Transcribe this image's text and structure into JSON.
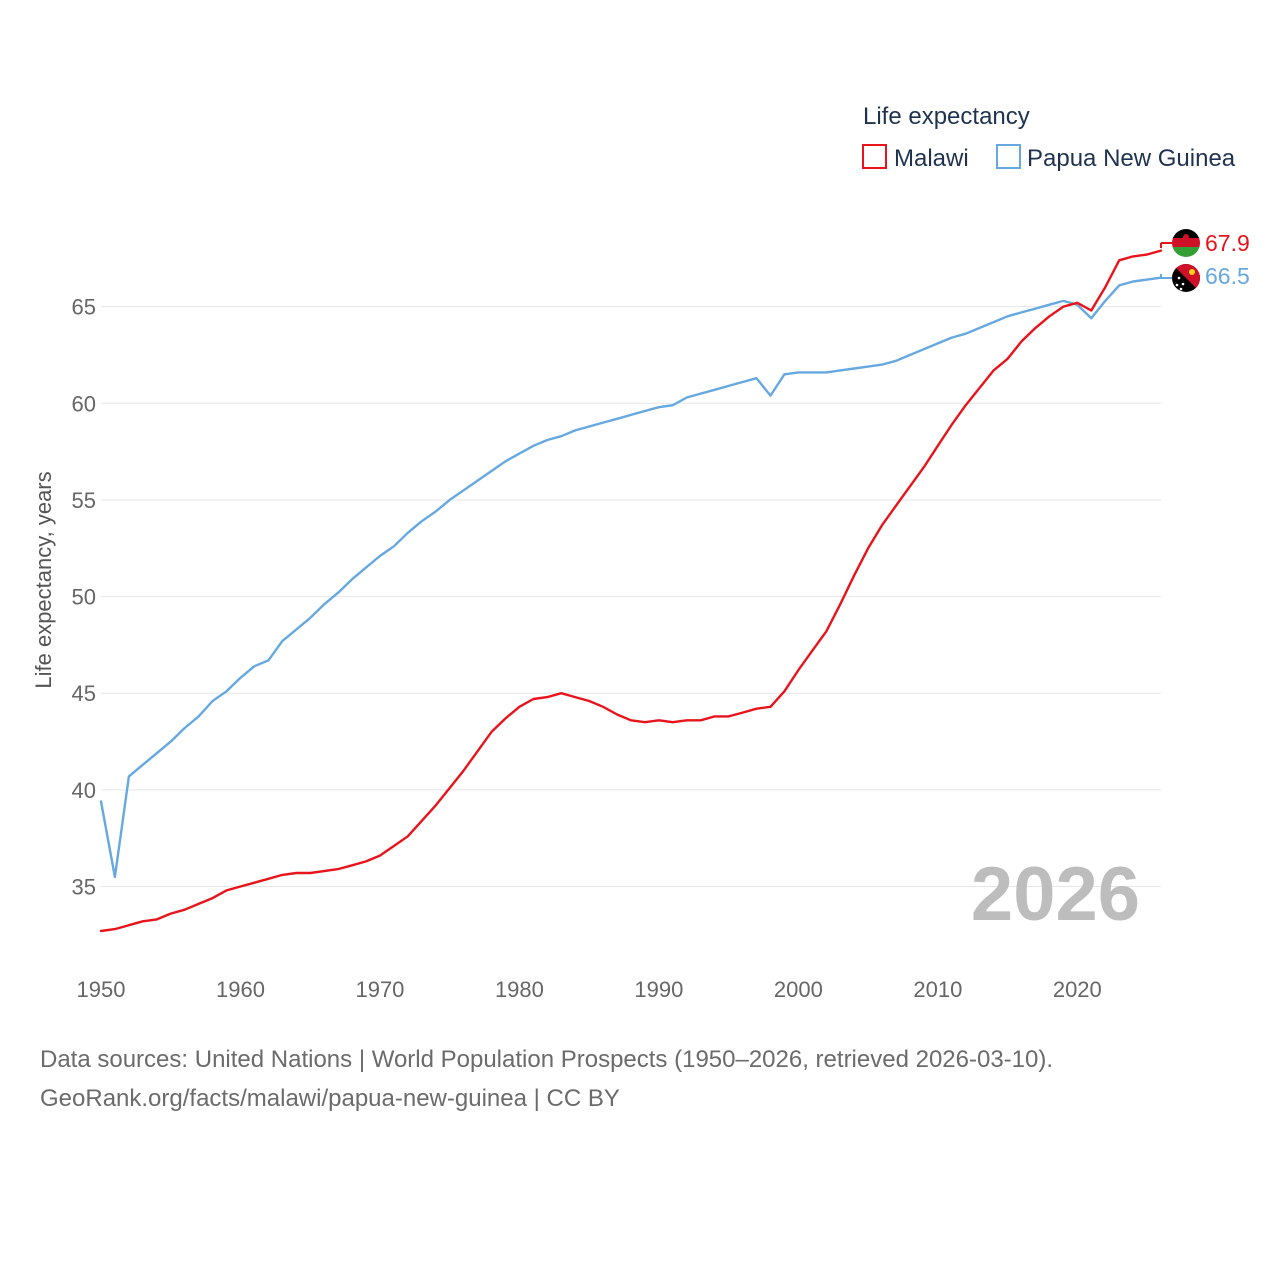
{
  "chart_data": {
    "type": "line",
    "legend_title": "Life expectancy",
    "ylabel": "Life expectancy, years",
    "xlabel": "",
    "xlim": [
      1950,
      2026
    ],
    "ylim": [
      31.2,
      70
    ],
    "yticks": [
      35,
      40,
      45,
      50,
      55,
      60,
      65
    ],
    "xticks": [
      1950,
      1960,
      1970,
      1980,
      1990,
      2000,
      2010,
      2020
    ],
    "year_label": "2026",
    "grid": true,
    "legend_position": "top-right",
    "series": [
      {
        "name": "Malawi",
        "color": "#e8141c",
        "end_label": "67.9",
        "x": [
          1950,
          1951,
          1952,
          1953,
          1954,
          1955,
          1956,
          1957,
          1958,
          1959,
          1960,
          1961,
          1962,
          1963,
          1964,
          1965,
          1966,
          1967,
          1968,
          1969,
          1970,
          1971,
          1972,
          1973,
          1974,
          1975,
          1976,
          1977,
          1978,
          1979,
          1980,
          1981,
          1982,
          1983,
          1984,
          1985,
          1986,
          1987,
          1988,
          1989,
          1990,
          1991,
          1992,
          1993,
          1994,
          1995,
          1996,
          1997,
          1998,
          1999,
          2000,
          2001,
          2002,
          2003,
          2004,
          2005,
          2006,
          2007,
          2008,
          2009,
          2010,
          2011,
          2012,
          2013,
          2014,
          2015,
          2016,
          2017,
          2018,
          2019,
          2020,
          2021,
          2022,
          2023,
          2024,
          2025,
          2026
        ],
        "values": [
          32.7,
          32.8,
          33.0,
          33.2,
          33.3,
          33.6,
          33.8,
          34.1,
          34.4,
          34.8,
          35.0,
          35.2,
          35.4,
          35.6,
          35.7,
          35.7,
          35.8,
          35.9,
          36.1,
          36.3,
          36.6,
          37.1,
          37.6,
          38.4,
          39.2,
          40.1,
          41.0,
          42.0,
          43.0,
          43.7,
          44.3,
          44.7,
          44.8,
          45.0,
          44.8,
          44.6,
          44.3,
          43.9,
          43.6,
          43.5,
          43.6,
          43.5,
          43.6,
          43.6,
          43.8,
          43.8,
          44.0,
          44.2,
          44.3,
          45.1,
          46.2,
          47.2,
          48.2,
          49.6,
          51.1,
          52.5,
          53.7,
          54.7,
          55.7,
          56.7,
          57.8,
          58.9,
          59.9,
          60.8,
          61.7,
          62.3,
          63.2,
          63.9,
          64.5,
          65.0,
          65.2,
          64.8,
          66.0,
          67.4,
          67.6,
          67.7,
          67.9
        ]
      },
      {
        "name": "Papua New Guinea",
        "color": "#66a8e0",
        "end_label": "66.5",
        "x": [
          1950,
          1951,
          1952,
          1953,
          1954,
          1955,
          1956,
          1957,
          1958,
          1959,
          1960,
          1961,
          1962,
          1963,
          1964,
          1965,
          1966,
          1967,
          1968,
          1969,
          1970,
          1971,
          1972,
          1973,
          1974,
          1975,
          1976,
          1977,
          1978,
          1979,
          1980,
          1981,
          1982,
          1983,
          1984,
          1985,
          1986,
          1987,
          1988,
          1989,
          1990,
          1991,
          1992,
          1993,
          1994,
          1995,
          1996,
          1997,
          1998,
          1999,
          2000,
          2001,
          2002,
          2003,
          2004,
          2005,
          2006,
          2007,
          2008,
          2009,
          2010,
          2011,
          2012,
          2013,
          2014,
          2015,
          2016,
          2017,
          2018,
          2019,
          2020,
          2021,
          2022,
          2023,
          2024,
          2025,
          2026
        ],
        "values": [
          39.4,
          35.5,
          40.7,
          41.3,
          41.9,
          42.5,
          43.2,
          43.8,
          44.6,
          45.1,
          45.8,
          46.4,
          46.7,
          47.7,
          48.3,
          48.9,
          49.6,
          50.2,
          50.9,
          51.5,
          52.1,
          52.6,
          53.3,
          53.9,
          54.4,
          55.0,
          55.5,
          56.0,
          56.5,
          57.0,
          57.4,
          57.8,
          58.1,
          58.3,
          58.6,
          58.8,
          59.0,
          59.2,
          59.4,
          59.6,
          59.8,
          59.9,
          60.3,
          60.5,
          60.7,
          60.9,
          61.1,
          61.3,
          60.4,
          61.5,
          61.6,
          61.6,
          61.6,
          61.7,
          61.8,
          61.9,
          62.0,
          62.2,
          62.5,
          62.8,
          63.1,
          63.4,
          63.6,
          63.9,
          64.2,
          64.5,
          64.7,
          64.9,
          65.1,
          65.3,
          65.1,
          64.4,
          65.3,
          66.1,
          66.3,
          66.4,
          66.5
        ]
      }
    ]
  },
  "footer": {
    "line1": "Data sources: United Nations | World Population Prospects (1950–2026, retrieved 2026-03-10).",
    "line2": "GeoRank.org/facts/malawi/papua-new-guinea | CC BY"
  },
  "colors": {
    "grid": "#e6e6e6",
    "malawi_flag_black": "#000000",
    "malawi_flag_red": "#ce1126",
    "malawi_flag_green": "#339e35",
    "png_flag_red": "#ce1126",
    "png_flag_gold": "#fcd116"
  }
}
